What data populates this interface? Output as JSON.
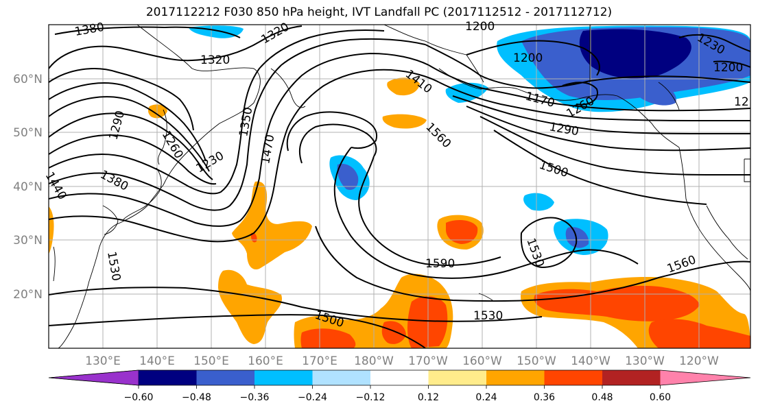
{
  "title": "2017112212 F030 850 hPa height, IVT Landfall PC (2017112512 - 2017112712)",
  "map": {
    "lon_labels": [
      "130°E",
      "140°E",
      "150°E",
      "160°E",
      "170°E",
      "180°W",
      "170°W",
      "160°W",
      "150°W",
      "140°W",
      "130°W",
      "120°W"
    ],
    "lat_labels": [
      "60°N",
      "50°N",
      "40°N",
      "30°N",
      "20°N"
    ]
  },
  "contour_labels": [
    {
      "text": "1380"
    },
    {
      "text": "1320"
    },
    {
      "text": "1320"
    },
    {
      "text": "1200"
    },
    {
      "text": "1200"
    },
    {
      "text": "1230"
    },
    {
      "text": "1200"
    },
    {
      "text": "12"
    },
    {
      "text": "1410"
    },
    {
      "text": "1170"
    },
    {
      "text": "1260"
    },
    {
      "text": "1290"
    },
    {
      "text": "1290"
    },
    {
      "text": "1350"
    },
    {
      "text": "1260"
    },
    {
      "text": "1230"
    },
    {
      "text": "1470"
    },
    {
      "text": "1560"
    },
    {
      "text": "1500"
    },
    {
      "text": "1440"
    },
    {
      "text": "1380"
    },
    {
      "text": "1590"
    },
    {
      "text": "1530"
    },
    {
      "text": "1560"
    },
    {
      "text": "1530"
    },
    {
      "text": "1500"
    },
    {
      "text": "1530"
    }
  ],
  "colorbar": {
    "ticks": [
      "−0.60",
      "−0.48",
      "−0.36",
      "−0.24",
      "−0.12",
      "0.12",
      "0.24",
      "0.36",
      "0.48",
      "0.60"
    ],
    "colors": [
      "#9932cc",
      "#000080",
      "#3a5fcd",
      "#00bfff",
      "#b0e2ff",
      "#ffffff",
      "#ffec8b",
      "#ffa500",
      "#ff4500",
      "#b22222",
      "#ff82ab"
    ]
  }
}
